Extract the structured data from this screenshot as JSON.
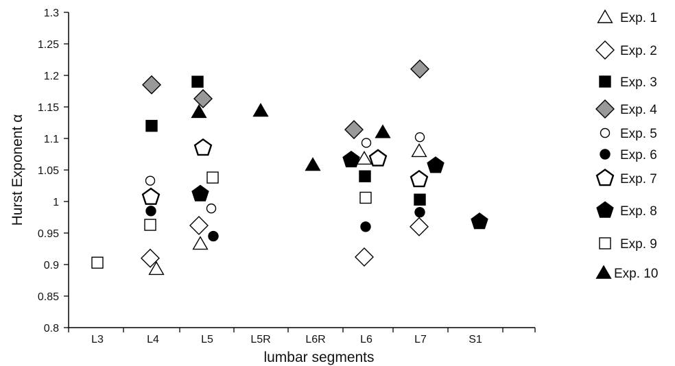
{
  "chart_data": {
    "type": "scatter",
    "categories": [
      "L3",
      "L4",
      "L5",
      "L5R",
      "L6R",
      "L6",
      "L7",
      "S1"
    ],
    "xlabel": "lumbar  segments",
    "ylabel": "Hurst  Exponent  α",
    "ylim": [
      0.8,
      1.3
    ],
    "yticks": [
      "0.8",
      "0.85",
      "0.9",
      "0.95",
      "1",
      "1.05",
      "1.1",
      "1.15",
      "1.2",
      "1.25",
      "1.3"
    ],
    "grid": false,
    "legend_position": "right",
    "series": [
      {
        "name": "Exp. 1",
        "marker": "triangle-open",
        "points": [
          {
            "x": "L4",
            "y": 0.893
          },
          {
            "x": "L5",
            "y": 0.933
          },
          {
            "x": "L6",
            "y": 1.068
          },
          {
            "x": "L7",
            "y": 1.08
          }
        ]
      },
      {
        "name": "Exp. 2",
        "marker": "diamond-open",
        "points": [
          {
            "x": "L4",
            "y": 0.91
          },
          {
            "x": "L5",
            "y": 0.962
          },
          {
            "x": "L6",
            "y": 0.912
          },
          {
            "x": "L7",
            "y": 0.96
          }
        ]
      },
      {
        "name": "Exp. 3",
        "marker": "square-filled",
        "points": [
          {
            "x": "L4",
            "y": 1.12
          },
          {
            "x": "L5",
            "y": 1.19
          },
          {
            "x": "L6",
            "y": 1.04
          },
          {
            "x": "L7",
            "y": 1.003
          }
        ]
      },
      {
        "name": "Exp. 4",
        "marker": "diamond-gray",
        "points": [
          {
            "x": "L4",
            "y": 1.185
          },
          {
            "x": "L5",
            "y": 1.163
          },
          {
            "x": "L6",
            "y": 1.114
          },
          {
            "x": "L7",
            "y": 1.21
          }
        ]
      },
      {
        "name": "Exp. 5",
        "marker": "circle-open",
        "points": [
          {
            "x": "L4",
            "y": 1.033
          },
          {
            "x": "L5",
            "y": 0.989
          },
          {
            "x": "L6",
            "y": 1.093
          },
          {
            "x": "L7",
            "y": 1.102
          }
        ]
      },
      {
        "name": "Exp. 6",
        "marker": "circle-filled",
        "points": [
          {
            "x": "L4",
            "y": 0.985
          },
          {
            "x": "L5",
            "y": 0.945
          },
          {
            "x": "L6",
            "y": 0.96
          },
          {
            "x": "L7",
            "y": 0.983
          }
        ]
      },
      {
        "name": "Exp. 7",
        "marker": "pentagon-open",
        "points": [
          {
            "x": "L4",
            "y": 1.007
          },
          {
            "x": "L5",
            "y": 1.085
          },
          {
            "x": "L6",
            "y": 1.068
          },
          {
            "x": "L7",
            "y": 1.035
          }
        ]
      },
      {
        "name": "Exp. 8",
        "marker": "pentagon-filled",
        "points": [
          {
            "x": "L5",
            "y": 1.012
          },
          {
            "x": "L6",
            "y": 1.066
          },
          {
            "x": "L7",
            "y": 1.057
          },
          {
            "x": "S1",
            "y": 0.968
          }
        ]
      },
      {
        "name": "Exp. 9",
        "marker": "square-open",
        "points": [
          {
            "x": "L3",
            "y": 0.903
          },
          {
            "x": "L4",
            "y": 0.963
          },
          {
            "x": "L5",
            "y": 1.038
          },
          {
            "x": "L6",
            "y": 1.006
          }
        ]
      },
      {
        "name": "Exp. 10",
        "marker": "triangle-filled",
        "points": [
          {
            "x": "L5",
            "y": 1.142
          },
          {
            "x": "L5R",
            "y": 1.144
          },
          {
            "x": "L6R",
            "y": 1.058
          },
          {
            "x": "L6",
            "y": 1.11
          }
        ]
      }
    ]
  }
}
